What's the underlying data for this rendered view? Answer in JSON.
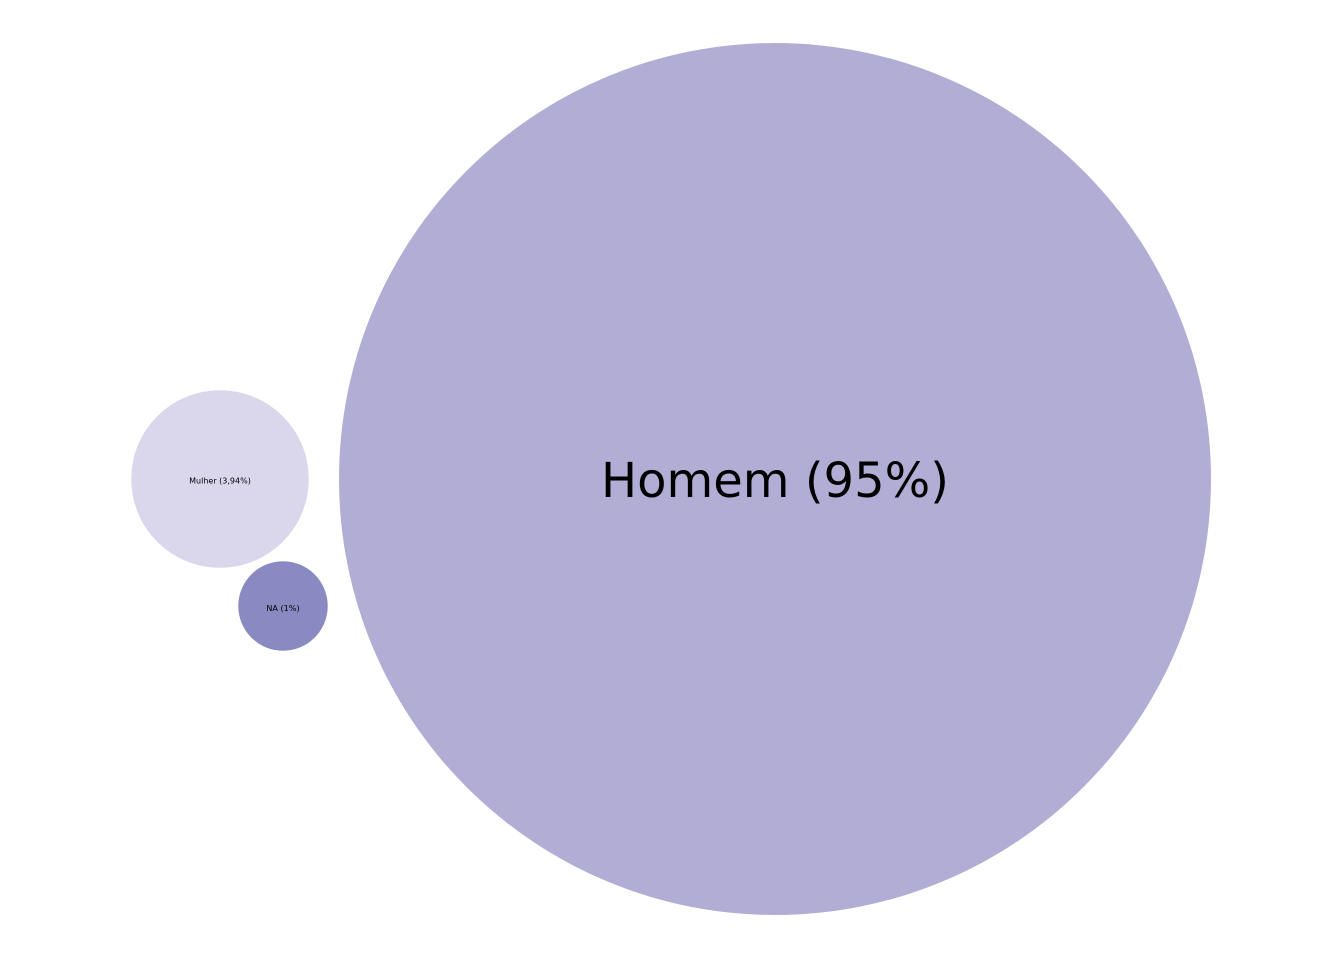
{
  "chart_data": {
    "type": "bubble",
    "title": "",
    "grid": false,
    "legend": "none",
    "items": [
      {
        "label": "Homem (95%)",
        "category": "Homem",
        "value": 95,
        "color": "#b2add4"
      },
      {
        "label": "Mulher (3,94%)",
        "category": "Mulher",
        "value": 3.94,
        "color": "#dad6ec"
      },
      {
        "label": "NA (1%)",
        "category": "NA",
        "value": 1,
        "color": "#8a8ac2"
      }
    ]
  }
}
